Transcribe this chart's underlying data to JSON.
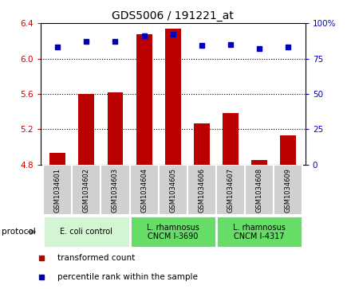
{
  "title": "GDS5006 / 191221_at",
  "samples": [
    "GSM1034601",
    "GSM1034602",
    "GSM1034603",
    "GSM1034604",
    "GSM1034605",
    "GSM1034606",
    "GSM1034607",
    "GSM1034608",
    "GSM1034609"
  ],
  "transformed_counts": [
    4.93,
    5.6,
    5.62,
    6.27,
    6.34,
    5.27,
    5.38,
    4.85,
    5.13
  ],
  "percentile_ranks": [
    83,
    87,
    87,
    91,
    92,
    84,
    85,
    82,
    83
  ],
  "ylim_left": [
    4.8,
    6.4
  ],
  "ylim_right": [
    0,
    100
  ],
  "yticks_left": [
    4.8,
    5.2,
    5.6,
    6.0,
    6.4
  ],
  "yticks_right": [
    0,
    25,
    50,
    75,
    100
  ],
  "ytick_labels_right": [
    "0",
    "25",
    "50",
    "75",
    "100%"
  ],
  "bar_color": "#bb0000",
  "dot_color": "#0000bb",
  "bar_base": 4.8,
  "grid_values": [
    5.2,
    5.6,
    6.0
  ],
  "protocols": [
    {
      "label": "E. coli control",
      "start": 0,
      "end": 3,
      "color": "#d4f5d4"
    },
    {
      "label": "L. rhamnosus\nCNCM I-3690",
      "start": 3,
      "end": 6,
      "color": "#66dd66"
    },
    {
      "label": "L. rhamnosus\nCNCM I-4317",
      "start": 6,
      "end": 9,
      "color": "#66dd66"
    }
  ],
  "legend_items": [
    {
      "label": "transformed count",
      "color": "#bb0000"
    },
    {
      "label": "percentile rank within the sample",
      "color": "#0000bb"
    }
  ],
  "protocol_label": "protocol",
  "tick_color_left": "#cc0000",
  "tick_color_right": "#0000cc",
  "background_color": "#ffffff",
  "plot_bg": "#ffffff",
  "box_color": "#d0d0d0",
  "box_edge_color": "#ffffff"
}
